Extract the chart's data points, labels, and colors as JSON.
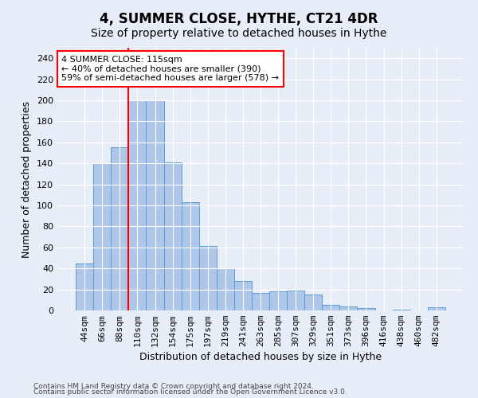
{
  "title": "4, SUMMER CLOSE, HYTHE, CT21 4DR",
  "subtitle": "Size of property relative to detached houses in Hythe",
  "xlabel": "Distribution of detached houses by size in Hythe",
  "ylabel": "Number of detached properties",
  "categories": [
    "44sqm",
    "66sqm",
    "88sqm",
    "110sqm",
    "132sqm",
    "154sqm",
    "175sqm",
    "197sqm",
    "219sqm",
    "241sqm",
    "263sqm",
    "285sqm",
    "307sqm",
    "329sqm",
    "351sqm",
    "373sqm",
    "396sqm",
    "416sqm",
    "438sqm",
    "460sqm",
    "482sqm"
  ],
  "values": [
    45,
    140,
    155,
    200,
    200,
    141,
    103,
    61,
    40,
    28,
    17,
    18,
    19,
    15,
    5,
    4,
    2,
    0,
    1,
    0,
    3
  ],
  "bar_color": "#aec6e8",
  "bar_edgecolor": "#5b9bd5",
  "vline_x": 3.0,
  "vline_color": "red",
  "annotation_text": "4 SUMMER CLOSE: 115sqm\n← 40% of detached houses are smaller (390)\n59% of semi-detached houses are larger (578) →",
  "annotation_box_color": "white",
  "annotation_box_edgecolor": "red",
  "ylim": [
    0,
    250
  ],
  "yticks": [
    0,
    20,
    40,
    60,
    80,
    100,
    120,
    140,
    160,
    180,
    200,
    220,
    240
  ],
  "background_color": "#e8eef7",
  "plot_bg_color": "#e8eef7",
  "title_fontsize": 12,
  "subtitle_fontsize": 10,
  "xlabel_fontsize": 9,
  "ylabel_fontsize": 9,
  "tick_fontsize": 8,
  "annotation_fontsize": 8,
  "footnote1": "Contains HM Land Registry data © Crown copyright and database right 2024.",
  "footnote2": "Contains public sector information licensed under the Open Government Licence v3.0.",
  "footnote_fontsize": 6.5
}
